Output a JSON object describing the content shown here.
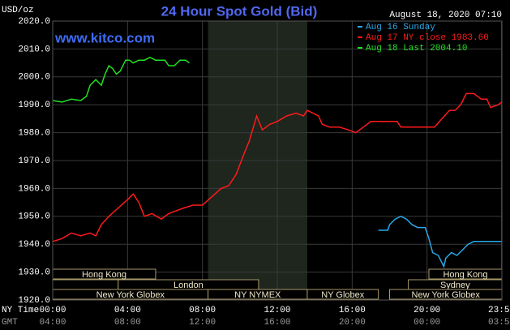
{
  "chart_data": {
    "type": "line",
    "title": "24 Hour Spot Gold (Bid)",
    "timestamp": "August 18, 2020 07:10",
    "unit": "USD/oz",
    "website": "www.kitco.com",
    "background": "#000000",
    "grid": true,
    "grid_color": "#3a3a3a",
    "xlim": [
      0,
      24
    ],
    "xticks": [
      {
        "value": 0,
        "label": "00:00"
      },
      {
        "value": 4,
        "label": "04:00"
      },
      {
        "value": 8,
        "label": "08:00"
      },
      {
        "value": 12,
        "label": "12:00"
      },
      {
        "value": 16,
        "label": "16:00"
      },
      {
        "value": 20,
        "label": "20:00"
      },
      {
        "value": 23.98,
        "label": "23:59"
      }
    ],
    "x_row_label": "NY Time",
    "x2_row_label": "GMT",
    "x2_labels": [
      "04:00",
      "08:00",
      "12:00",
      "16:00",
      "20:00",
      "00:00",
      "03:59"
    ],
    "ylim": [
      1920,
      2020
    ],
    "yticks": [
      {
        "value": 1920,
        "label": "1920.0"
      },
      {
        "value": 1930,
        "label": "1930.0"
      },
      {
        "value": 1940,
        "label": "1940.0"
      },
      {
        "value": 1950,
        "label": "1950.0"
      },
      {
        "value": 1960,
        "label": "1960.0"
      },
      {
        "value": 1970,
        "label": "1970.0"
      },
      {
        "value": 1980,
        "label": "1980.0"
      },
      {
        "value": 1990,
        "label": "1990.0"
      },
      {
        "value": 2000,
        "label": "2000.0"
      },
      {
        "value": 2010,
        "label": "2010.0"
      },
      {
        "value": 2020,
        "label": "2020.0"
      }
    ],
    "series": [
      {
        "name": "Aug 16 Sunday",
        "color": "#29a9e8",
        "x": [
          17.4,
          17.9,
          18,
          18.3,
          18.6,
          18.9,
          19.2,
          19.5,
          19.9,
          20.1,
          20.3,
          20.6,
          20.9,
          21,
          21.3,
          21.6,
          21.9,
          22.2,
          22.5,
          22.9,
          23.3,
          23.6,
          24
        ],
        "values": [
          1945,
          1945,
          1947,
          1949,
          1950,
          1949,
          1947,
          1946,
          1946,
          1942,
          1937,
          1936,
          1932,
          1935,
          1937,
          1936,
          1938,
          1940,
          1941,
          1941,
          1941,
          1941,
          1941
        ]
      },
      {
        "name": "Aug 17 NY close 1983.60",
        "color": "#ff1a1a",
        "x": [
          0,
          0.5,
          1,
          1.5,
          2,
          2.3,
          2.6,
          3,
          3.5,
          4,
          4.3,
          4.6,
          4.9,
          5.3,
          5.8,
          6.2,
          6.6,
          7,
          7.5,
          8,
          8.5,
          9,
          9.4,
          9.8,
          10.2,
          10.5,
          10.9,
          11.2,
          11.6,
          12,
          12.5,
          13,
          13.4,
          13.6,
          13.9,
          14.2,
          14.4,
          14.8,
          15.3,
          15.8,
          16.2,
          16.6,
          17,
          17.5,
          18,
          18.4,
          18.6,
          19,
          19.5,
          20,
          20.4,
          20.8,
          21.2,
          21.5,
          21.8,
          22.1,
          22.5,
          22.9,
          23.2,
          23.4,
          23.8,
          24
        ],
        "values": [
          1941,
          1942,
          1944,
          1943,
          1944,
          1943,
          1947,
          1950,
          1953,
          1956,
          1958,
          1955,
          1950,
          1951,
          1949,
          1951,
          1952,
          1953,
          1954,
          1954,
          1957,
          1960,
          1961,
          1965,
          1972,
          1977,
          1986,
          1981,
          1983,
          1984,
          1986,
          1987,
          1986,
          1988,
          1987,
          1986,
          1983,
          1982,
          1982,
          1981,
          1980,
          1982,
          1984,
          1984,
          1984,
          1984,
          1982,
          1982,
          1982,
          1982,
          1982,
          1985,
          1988,
          1988,
          1990,
          1994,
          1994,
          1992,
          1992,
          1989,
          1990,
          1991
        ]
      },
      {
        "name": "Aug 18 Last 2004.10",
        "color": "#22e022",
        "x": [
          0,
          0.5,
          1,
          1.5,
          1.8,
          2,
          2.3,
          2.6,
          2.8,
          3,
          3.2,
          3.4,
          3.6,
          3.9,
          4.1,
          4.3,
          4.6,
          4.9,
          5.2,
          5.5,
          5.8,
          6,
          6.2,
          6.5,
          6.8,
          7.1,
          7.3
        ],
        "values": [
          1991.5,
          1991,
          1992,
          1991.5,
          1993,
          1997,
          1999,
          1997,
          2001,
          2004,
          2003,
          2001,
          2002,
          2006,
          2006,
          2005,
          2006,
          2006,
          2007,
          2006,
          2006,
          2006,
          2004,
          2004,
          2006,
          2006,
          2005
        ]
      }
    ],
    "sessions": [
      {
        "name": "Hong Kong",
        "row": 0,
        "start": 0,
        "end": 5.5
      },
      {
        "name": "Hong Kong",
        "row": 0,
        "start": 20.1,
        "end": 24
      },
      {
        "name": null,
        "row": 1,
        "start": 0,
        "end": 3.5
      },
      {
        "name": "London",
        "row": 1,
        "start": 3.5,
        "end": 11
      },
      {
        "name": "Sydney",
        "row": 1,
        "start": 19,
        "end": 24
      },
      {
        "name": "New York Globex",
        "row": 2,
        "start": 0,
        "end": 8.3
      },
      {
        "name": "NY NYMEX",
        "row": 2,
        "start": 8.3,
        "end": 13.6,
        "shade": true
      },
      {
        "name": "NY Globex",
        "row": 2,
        "start": 13.6,
        "end": 17.4
      },
      {
        "name": "New York Globex",
        "row": 2,
        "start": 18,
        "end": 24
      }
    ]
  }
}
